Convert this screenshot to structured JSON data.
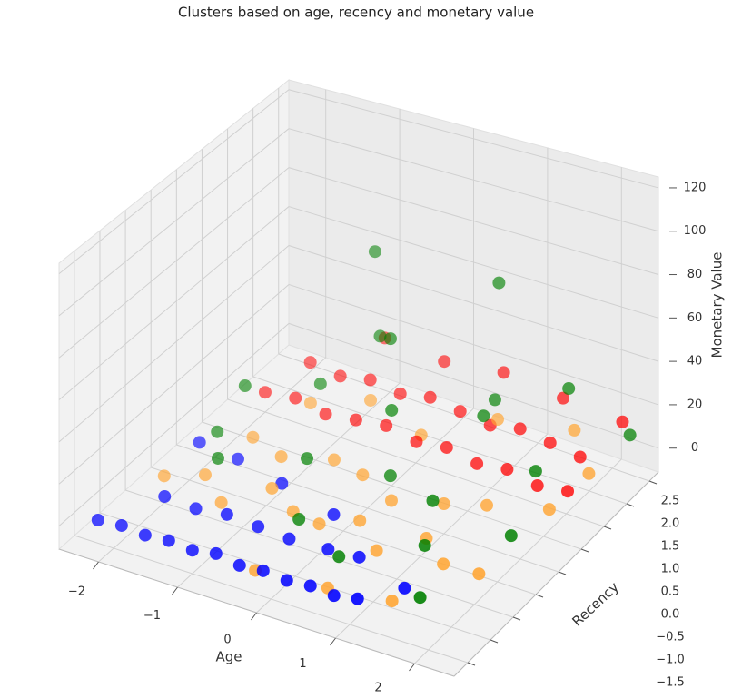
{
  "chart_data": {
    "type": "scatter3d",
    "title": "Clusters based on age, recency and monetary value",
    "xlabel": "Age",
    "ylabel": "Recency",
    "zlabel": "Monetary Value",
    "xlim": [
      -2.5,
      2.5
    ],
    "ylim": [
      -1.8,
      2.7
    ],
    "zlim": [
      -11,
      125
    ],
    "xticks": [
      {
        "value": -2,
        "label": "−2"
      },
      {
        "value": -1,
        "label": "−1"
      },
      0,
      1,
      2
    ],
    "yticks": [
      {
        "value": -1.5,
        "label": "−1.5"
      },
      {
        "value": -1.0,
        "label": "−1.0"
      },
      {
        "value": -0.5,
        "label": "−0.5"
      },
      {
        "value": 0.0,
        "label": "0.0"
      },
      {
        "value": 0.5,
        "label": "0.5"
      },
      {
        "value": 1.0,
        "label": "1.0"
      },
      {
        "value": 1.5,
        "label": "1.5"
      },
      {
        "value": 2.0,
        "label": "2.0"
      },
      {
        "value": 2.5,
        "label": "2.5"
      }
    ],
    "zticks": [
      0,
      20,
      40,
      60,
      80,
      100,
      120
    ],
    "grid": true,
    "series": [
      {
        "color": "#0000ff",
        "x": [
          -2.2,
          -1.9,
          -1.6,
          -1.3,
          -1.0,
          -0.7,
          -0.4,
          -0.1,
          0.2,
          0.5,
          0.8,
          1.1,
          -1.8,
          -1.4,
          -1.0,
          -0.6,
          -0.2,
          0.3,
          0.7,
          -2.0,
          -1.5,
          -0.8,
          0.0,
          1.4
        ],
        "y": [
          -1.5,
          -1.5,
          -1.5,
          -1.5,
          -1.5,
          -1.5,
          -1.5,
          -1.5,
          -1.5,
          -1.5,
          -1.5,
          -1.5,
          -0.8,
          -0.8,
          -0.8,
          -0.8,
          -0.8,
          -0.8,
          -0.8,
          0.2,
          0.2,
          0.0,
          -0.2,
          -1.0
        ],
        "z": [
          0,
          1,
          0,
          1,
          0,
          2,
          0,
          1,
          0,
          1,
          0,
          2,
          1,
          0,
          2,
          1,
          0,
          1,
          2,
          3,
          1,
          2,
          1,
          0
        ]
      },
      {
        "color": "#ffa533",
        "x": [
          -2.0,
          -1.6,
          -1.2,
          -0.8,
          -0.4,
          0.0,
          0.4,
          0.8,
          1.2,
          1.6,
          2.0,
          -1.5,
          -1.0,
          -0.5,
          0.0,
          0.5,
          1.0,
          1.5,
          2.2,
          -1.2,
          -0.6,
          0.2,
          0.9,
          1.8,
          2.3,
          0.6,
          1.3,
          -0.2
        ],
        "y": [
          -0.5,
          -0.3,
          -0.6,
          -0.2,
          -0.4,
          -0.5,
          -0.3,
          -0.6,
          -0.2,
          -0.5,
          -0.4,
          0.5,
          0.3,
          0.6,
          0.4,
          0.2,
          0.5,
          0.6,
          0.8,
          1.2,
          1.5,
          1.3,
          1.8,
          2.0,
          1.5,
          -1.3,
          -1.1,
          -1.5
        ],
        "z": [
          2,
          3,
          1,
          4,
          2,
          3,
          5,
          2,
          4,
          3,
          1,
          5,
          6,
          4,
          7,
          5,
          3,
          6,
          8,
          10,
          12,
          9,
          14,
          15,
          11,
          -3,
          -5,
          0
        ]
      },
      {
        "color": "#ff0000",
        "x": [
          -1.8,
          -1.4,
          -1.0,
          -0.6,
          -0.2,
          0.2,
          0.6,
          1.0,
          1.4,
          1.8,
          2.2,
          -1.6,
          -1.2,
          -0.8,
          -0.4,
          0.0,
          0.4,
          0.8,
          1.2,
          1.6,
          2.0,
          -1.0,
          -0.2,
          0.6,
          1.4,
          2.2
        ],
        "y": [
          1.2,
          1.2,
          1.2,
          1.2,
          1.2,
          1.2,
          1.2,
          1.2,
          1.2,
          1.2,
          1.2,
          1.8,
          1.8,
          1.8,
          1.8,
          1.8,
          1.8,
          1.8,
          1.8,
          1.8,
          1.8,
          2.4,
          2.4,
          2.4,
          2.4,
          2.4
        ],
        "z": [
          8,
          10,
          7,
          9,
          11,
          8,
          10,
          7,
          9,
          6,
          8,
          12,
          10,
          13,
          11,
          14,
          12,
          10,
          13,
          11,
          9,
          18,
          16,
          20,
          17,
          15
        ]
      },
      {
        "color": "#008000",
        "x": [
          -1.0,
          0.6,
          -0.4,
          -1.8,
          -1.2,
          0.0,
          0.8,
          1.6,
          2.3,
          -0.6,
          0.3,
          1.1,
          1.9,
          -1.5,
          -0.2,
          0.5,
          1.3,
          2.0,
          -0.8,
          0.9,
          1.6,
          -1.9
        ],
        "y": [
          2.2,
          2.3,
          1.6,
          0.8,
          1.4,
          1.0,
          1.9,
          2.2,
          2.4,
          0.2,
          0.5,
          0.1,
          1.0,
          -0.2,
          -0.6,
          -0.9,
          -0.4,
          0.3,
          2.0,
          1.5,
          -1.0,
          0.4
        ],
        "z": [
          65,
          65,
          42,
          20,
          15,
          25,
          20,
          28,
          10,
          12,
          8,
          14,
          18,
          10,
          5,
          2,
          6,
          4,
          30,
          22,
          -2,
          5
        ]
      }
    ]
  }
}
